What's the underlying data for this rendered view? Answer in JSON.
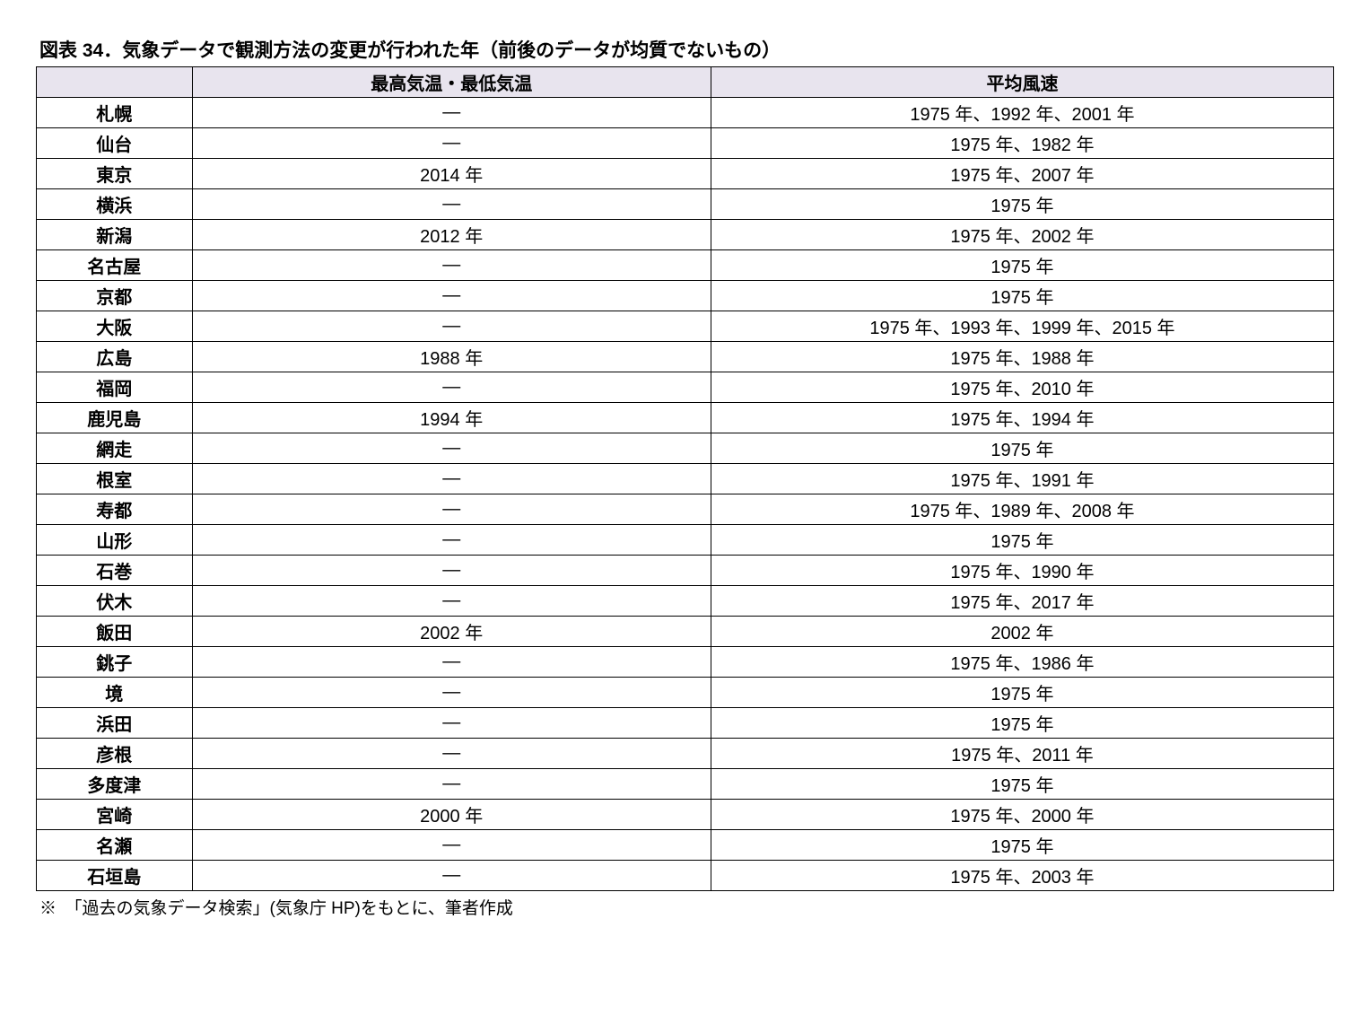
{
  "caption": "図表 34．気象データで観測方法の変更が行われた年（前後のデータが均質でないもの）",
  "footnote": "※　「過去の気象データ検索」(気象庁 HP)をもとに、筆者作成",
  "table": {
    "header_bg": "#e8e4ee",
    "border_color": "#000000",
    "font_size_pt": 15,
    "columns": [
      "",
      "最高気温・最低気温",
      "平均風速"
    ],
    "col_widths": [
      "12%",
      "40%",
      "48%"
    ],
    "rows": [
      [
        "札幌",
        "―",
        "1975 年、1992 年、2001 年"
      ],
      [
        "仙台",
        "―",
        "1975 年、1982 年"
      ],
      [
        "東京",
        "2014 年",
        "1975 年、2007 年"
      ],
      [
        "横浜",
        "―",
        "1975 年"
      ],
      [
        "新潟",
        "2012 年",
        "1975 年、2002 年"
      ],
      [
        "名古屋",
        "―",
        "1975 年"
      ],
      [
        "京都",
        "―",
        "1975 年"
      ],
      [
        "大阪",
        "―",
        "1975 年、1993 年、1999 年、2015 年"
      ],
      [
        "広島",
        "1988 年",
        "1975 年、1988 年"
      ],
      [
        "福岡",
        "―",
        "1975 年、2010 年"
      ],
      [
        "鹿児島",
        "1994 年",
        "1975 年、1994 年"
      ],
      [
        "網走",
        "―",
        "1975 年"
      ],
      [
        "根室",
        "―",
        "1975 年、1991 年"
      ],
      [
        "寿都",
        "―",
        "1975 年、1989 年、2008 年"
      ],
      [
        "山形",
        "―",
        "1975 年"
      ],
      [
        "石巻",
        "―",
        "1975 年、1990 年"
      ],
      [
        "伏木",
        "―",
        "1975 年、2017 年"
      ],
      [
        "飯田",
        "2002 年",
        "2002 年"
      ],
      [
        "銚子",
        "―",
        "1975 年、1986 年"
      ],
      [
        "境",
        "―",
        "1975 年"
      ],
      [
        "浜田",
        "―",
        "1975 年"
      ],
      [
        "彦根",
        "―",
        "1975 年、2011 年"
      ],
      [
        "多度津",
        "―",
        "1975 年"
      ],
      [
        "宮崎",
        "2000 年",
        "1975 年、2000 年"
      ],
      [
        "名瀬",
        "―",
        "1975 年"
      ],
      [
        "石垣島",
        "―",
        "1975 年、2003 年"
      ]
    ]
  }
}
